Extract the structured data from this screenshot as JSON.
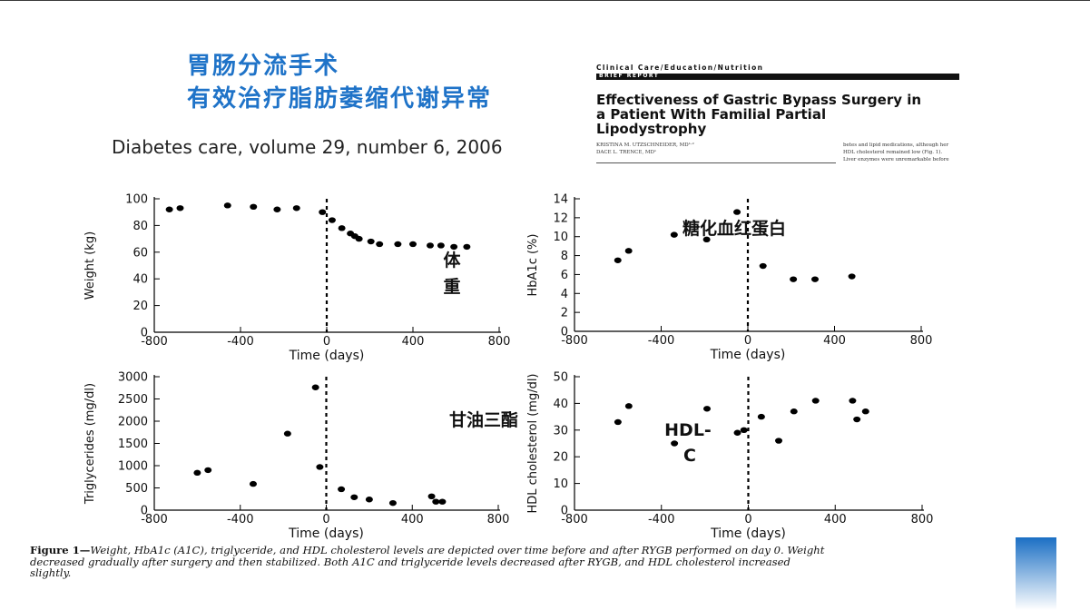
{
  "slide": {
    "title_line1": "胃肠分流手术",
    "title_line2": "有效治疗脂肪萎缩代谢异常",
    "citation": "Diabetes care, volume 29, number 6, 2006"
  },
  "paper": {
    "section": "Clinical Care/Education/Nutrition",
    "section_bar": "BRIEF REPORT",
    "title_line1": "Effectiveness of Gastric Bypass Surgery in",
    "title_line2": "a Patient With Familial Partial",
    "title_line3": "Lipodystrophy",
    "author1": "KRISTINA M. UTZSCHNEIDER, MD¹·²",
    "author2": "DACE L. TRENCE, MD¹",
    "body_line1": "betes and lipid medications, although her",
    "body_line2": "HDL cholesterol remained low (Fig. 1).",
    "body_line3": "Liver enzymes were unremarkable before"
  },
  "figure_caption": {
    "label": "Figure 1—",
    "line1": "Weight, HbA1c (A1C), triglyceride, and HDL cholesterol levels are depicted over time before and after RYGB performed on day 0. Weight",
    "line2": "decreased gradually after surgery and then stabilized. Both A1C and triglyceride levels decreased after RYGB, and HDL cholesterol increased",
    "line3": "slightly."
  },
  "colors": {
    "title_blue": "#1f73c8",
    "marker": "#000000",
    "accent_gradient_top": "#1b6fc4"
  },
  "chart_data": [
    {
      "type": "scatter",
      "id": "weight",
      "xlabel": "Time (days)",
      "ylabel": "Weight (kg)",
      "xlim": [
        -800,
        800
      ],
      "ylim": [
        0,
        100
      ],
      "xticks": [
        -800,
        -400,
        0,
        400,
        800
      ],
      "yticks": [
        0,
        20,
        40,
        60,
        80,
        100
      ],
      "vline_at": 0,
      "annotation": [
        "体",
        "重"
      ],
      "points": [
        [
          -730,
          92
        ],
        [
          -680,
          93
        ],
        [
          -460,
          95
        ],
        [
          -340,
          94
        ],
        [
          -230,
          92
        ],
        [
          -140,
          93
        ],
        [
          -20,
          90
        ],
        [
          25,
          84
        ],
        [
          70,
          78
        ],
        [
          110,
          74
        ],
        [
          130,
          72
        ],
        [
          150,
          70
        ],
        [
          205,
          68
        ],
        [
          245,
          66
        ],
        [
          330,
          66
        ],
        [
          400,
          66
        ],
        [
          480,
          65
        ],
        [
          530,
          65
        ],
        [
          590,
          64
        ],
        [
          650,
          64
        ]
      ]
    },
    {
      "type": "scatter",
      "id": "hba1c",
      "xlabel": "Time (days)",
      "ylabel": "HbA1c (%)",
      "xlim": [
        -800,
        800
      ],
      "ylim": [
        0,
        14
      ],
      "xticks": [
        -800,
        -400,
        0,
        400,
        800
      ],
      "yticks": [
        0,
        2,
        4,
        6,
        8,
        10,
        12,
        14
      ],
      "vline_at": 0,
      "annotation": [
        "糖化血红蛋白"
      ],
      "points": [
        [
          -600,
          7.5
        ],
        [
          -550,
          8.5
        ],
        [
          -340,
          10.2
        ],
        [
          -190,
          9.7
        ],
        [
          -50,
          12.6
        ],
        [
          70,
          6.9
        ],
        [
          210,
          5.5
        ],
        [
          310,
          5.5
        ],
        [
          480,
          5.8
        ]
      ]
    },
    {
      "type": "scatter",
      "id": "triglycerides",
      "xlabel": "Time (days)",
      "ylabel": "Triglycerides (mg/dl)",
      "xlim": [
        -800,
        800
      ],
      "ylim": [
        0,
        3000
      ],
      "xticks": [
        -800,
        -400,
        0,
        400,
        800
      ],
      "yticks": [
        0,
        500,
        1000,
        1500,
        2000,
        2500,
        3000
      ],
      "vline_at": 0,
      "annotation": [
        "甘油三酯"
      ],
      "points": [
        [
          -600,
          840
        ],
        [
          -550,
          900
        ],
        [
          -340,
          590
        ],
        [
          -180,
          1720
        ],
        [
          -50,
          2760
        ],
        [
          -30,
          970
        ],
        [
          70,
          470
        ],
        [
          130,
          290
        ],
        [
          200,
          240
        ],
        [
          310,
          160
        ],
        [
          490,
          310
        ],
        [
          510,
          190
        ],
        [
          540,
          190
        ]
      ]
    },
    {
      "type": "scatter",
      "id": "hdl",
      "xlabel": "Time (days)",
      "ylabel": "HDL cholesterol (mg/dl)",
      "xlim": [
        -800,
        800
      ],
      "ylim": [
        0,
        50
      ],
      "xticks": [
        -800,
        -400,
        0,
        400,
        800
      ],
      "yticks": [
        0,
        10,
        20,
        30,
        40,
        50
      ],
      "vline_at": 0,
      "annotation": [
        "HDL-",
        "C"
      ],
      "points": [
        [
          -600,
          33
        ],
        [
          -550,
          39
        ],
        [
          -340,
          25
        ],
        [
          -190,
          38
        ],
        [
          -50,
          29
        ],
        [
          -20,
          30
        ],
        [
          60,
          35
        ],
        [
          140,
          26
        ],
        [
          210,
          37
        ],
        [
          310,
          41
        ],
        [
          480,
          41
        ],
        [
          500,
          34
        ],
        [
          540,
          37
        ]
      ]
    }
  ]
}
